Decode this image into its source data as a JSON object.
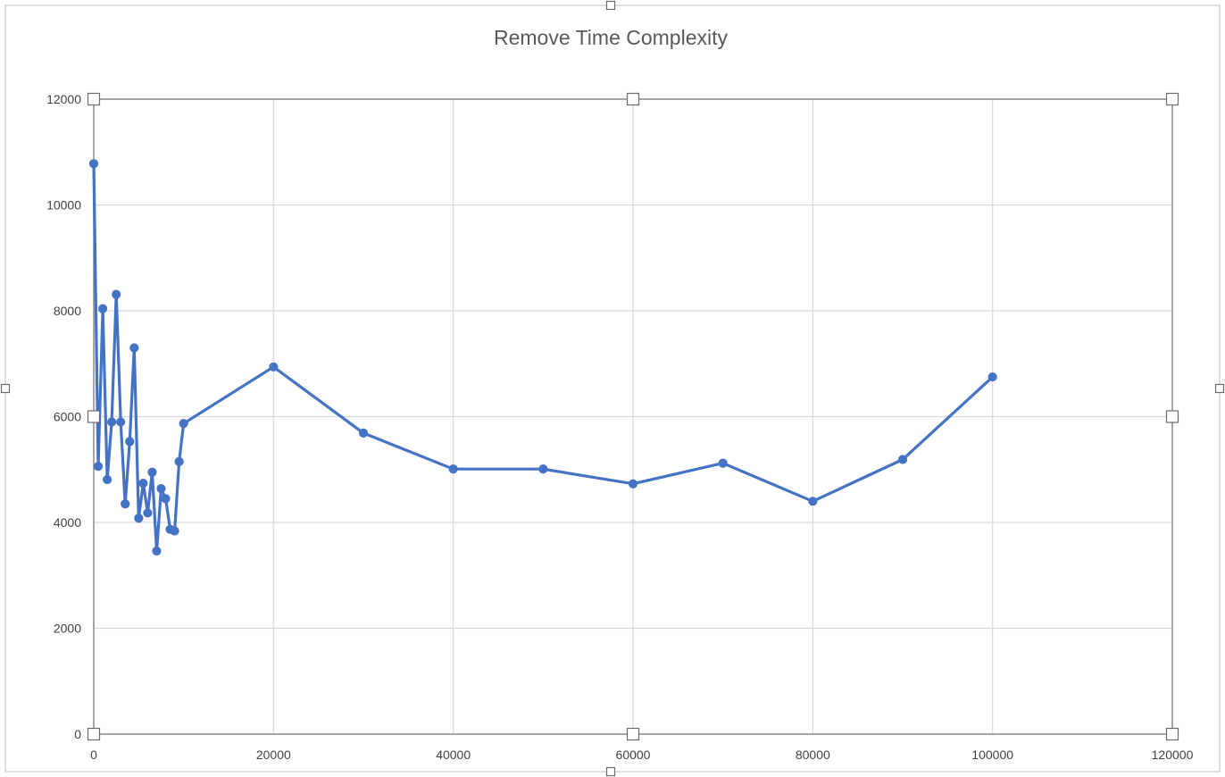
{
  "chart_data": {
    "type": "line",
    "title": "Remove Time Complexity",
    "xlabel": "",
    "ylabel": "",
    "xlim": [
      0,
      120000
    ],
    "ylim": [
      0,
      12000
    ],
    "x_ticks": [
      0,
      20000,
      40000,
      60000,
      80000,
      100000,
      120000
    ],
    "y_ticks": [
      0,
      2000,
      4000,
      6000,
      8000,
      10000,
      12000
    ],
    "x_tick_labels": [
      "0",
      "20000",
      "40000",
      "60000",
      "80000",
      "100000",
      "120000"
    ],
    "y_tick_labels": [
      "0",
      "2000",
      "4000",
      "6000",
      "8000",
      "10000",
      "12000"
    ],
    "grid": true,
    "legend": "none",
    "series_color": "#4472c4",
    "series": [
      {
        "x": [
          0,
          500,
          1000,
          1500,
          2000,
          2500,
          3000,
          3500,
          4000,
          4500,
          5000,
          5500,
          6000,
          6500,
          7000,
          7500,
          8000,
          8500,
          9000,
          9500,
          10000,
          20000,
          30000,
          40000,
          50000,
          60000,
          70000,
          80000,
          90000,
          100000
        ],
        "y": [
          10780,
          5060,
          8040,
          4810,
          5900,
          8310,
          5900,
          4350,
          5530,
          7300,
          4080,
          4740,
          4180,
          4950,
          3460,
          4640,
          4450,
          3870,
          3840,
          5150,
          5870,
          6940,
          5690,
          5010,
          5010,
          4730,
          5120,
          4400,
          5190,
          6750
        ]
      }
    ]
  }
}
